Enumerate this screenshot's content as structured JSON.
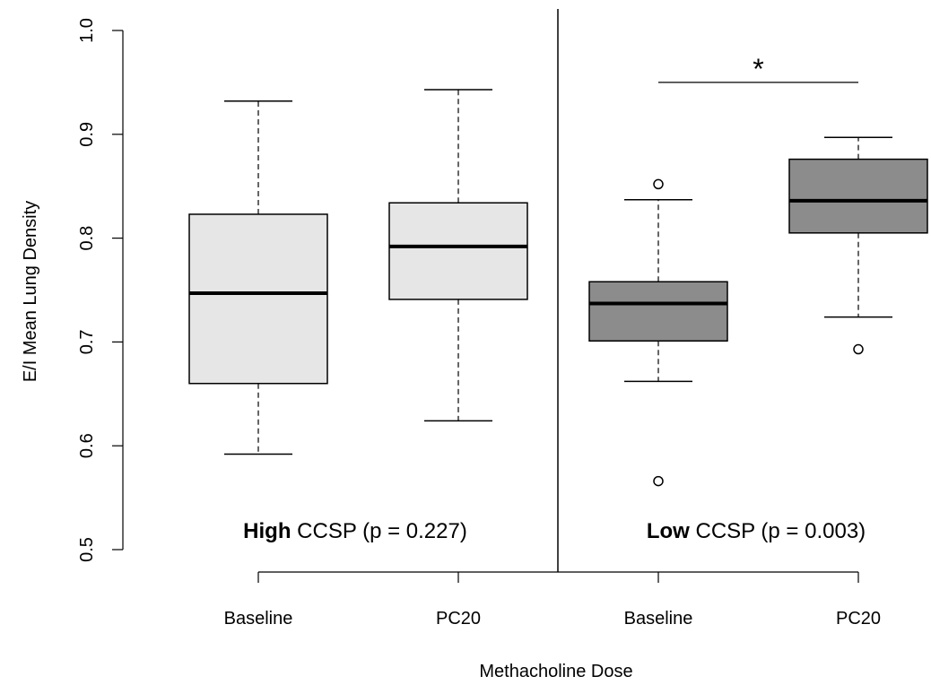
{
  "chart_data": {
    "type": "box",
    "xlabel": "Methacholine Dose",
    "ylabel": "E/I Mean Lung Density",
    "ylim": [
      0.5,
      1.0
    ],
    "yticks": [
      "0.5",
      "0.6",
      "0.7",
      "0.8",
      "0.9",
      "1.0"
    ],
    "categories": [
      "Baseline",
      "PC20",
      "Baseline",
      "PC20"
    ],
    "panels": [
      {
        "label_bold": "High",
        "label_rest": " CCSP (p = 0.227)"
      },
      {
        "label_bold": "Low",
        "label_rest": " CCSP (p = 0.003)"
      }
    ],
    "boxes": [
      {
        "category": "Baseline",
        "group": "High CCSP",
        "whisker_low": 0.592,
        "q1": 0.66,
        "median": 0.747,
        "q3": 0.823,
        "whisker_high": 0.932,
        "outliers": [],
        "fill": "#e6e6e6"
      },
      {
        "category": "PC20",
        "group": "High CCSP",
        "whisker_low": 0.624,
        "q1": 0.741,
        "median": 0.792,
        "q3": 0.834,
        "whisker_high": 0.943,
        "outliers": [],
        "fill": "#e6e6e6"
      },
      {
        "category": "Baseline",
        "group": "Low CCSP",
        "whisker_low": 0.662,
        "q1": 0.701,
        "median": 0.737,
        "q3": 0.758,
        "whisker_high": 0.837,
        "outliers": [
          0.852,
          0.566
        ],
        "fill": "#8c8c8c"
      },
      {
        "category": "PC20",
        "group": "Low CCSP",
        "whisker_low": 0.724,
        "q1": 0.805,
        "median": 0.836,
        "q3": 0.876,
        "whisker_high": 0.897,
        "outliers": [
          0.693
        ],
        "fill": "#8c8c8c"
      }
    ],
    "significance": {
      "from_box": 2,
      "to_box": 3,
      "y": 0.95,
      "symbol": "*"
    },
    "grid": false
  }
}
